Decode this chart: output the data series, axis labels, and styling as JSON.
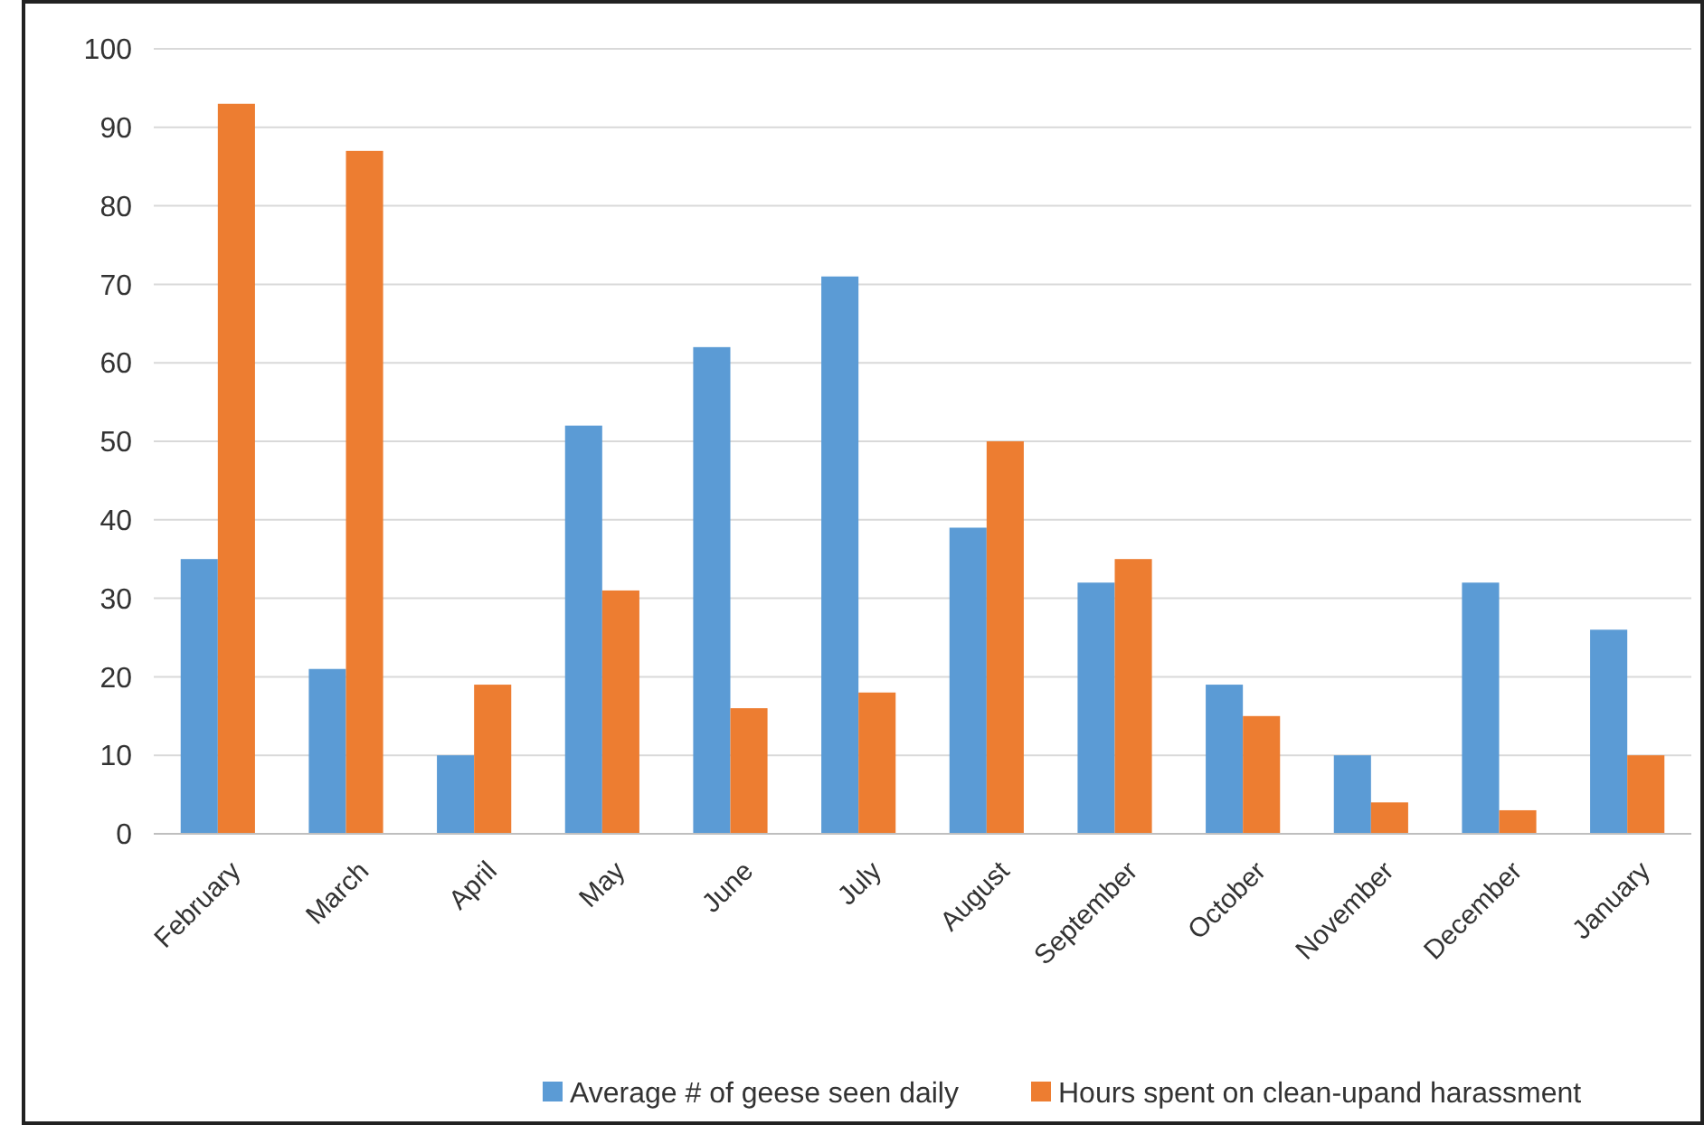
{
  "chart_data": {
    "type": "bar",
    "categories": [
      "February",
      "March",
      "April",
      "May",
      "June",
      "July",
      "August",
      "September",
      "October",
      "November",
      "December",
      "January"
    ],
    "series": [
      {
        "name": "Average # of geese seen daily",
        "color": "#5b9bd5",
        "values": [
          35,
          21,
          10,
          52,
          62,
          71,
          39,
          32,
          19,
          10,
          32,
          26
        ]
      },
      {
        "name": "Hours spent on clean-upand harassment",
        "color": "#ed7d31",
        "values": [
          93,
          87,
          19,
          31,
          16,
          18,
          50,
          35,
          15,
          4,
          3,
          10
        ]
      }
    ],
    "ylim": [
      0,
      100
    ],
    "yticks": [
      0,
      10,
      20,
      30,
      40,
      50,
      60,
      70,
      80,
      90,
      100
    ],
    "grid": "y",
    "legend": "bottom"
  }
}
